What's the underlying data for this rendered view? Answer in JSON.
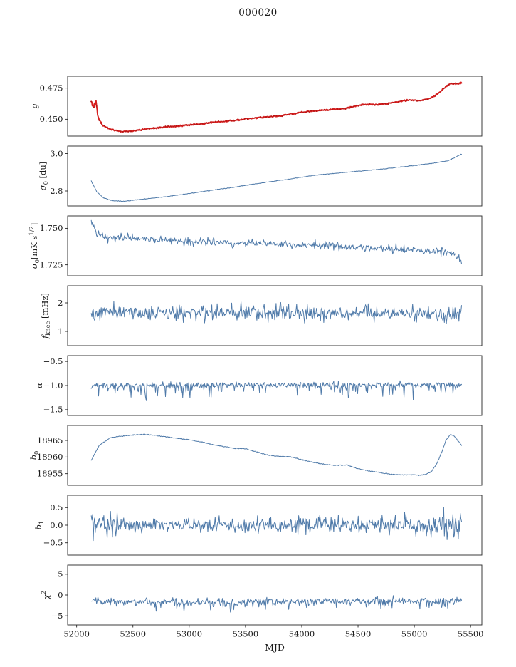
{
  "title": "000020",
  "chart_data": {
    "type": "line",
    "subtype": "multi-panel shared x-axis time series",
    "x": {
      "label": "MJD",
      "xlim": [
        51920,
        55600
      ],
      "ticks": [
        52000,
        52500,
        53000,
        53500,
        54000,
        54500,
        55000,
        55500
      ],
      "tick_labels": [
        "52000",
        "52500",
        "53000",
        "53500",
        "54000",
        "54500",
        "55000",
        "55500"
      ]
    },
    "panels": [
      {
        "id": "g",
        "ylabel_parts": [
          {
            "t": "g",
            "italic": true
          }
        ],
        "color": "#d62020",
        "ylim": [
          0.4365,
          0.4845
        ],
        "yticks": [
          {
            "v": 0.45,
            "label": "0.450"
          },
          {
            "v": 0.475,
            "label": "0.475"
          }
        ],
        "x_range": [
          52130,
          55420
        ],
        "n_points": 700,
        "noise_env": [
          [
            52130,
            0.0045
          ],
          [
            52210,
            0.0012
          ],
          [
            52280,
            0.0007
          ],
          [
            55420,
            0.0007
          ]
        ],
        "spiky": false,
        "trend_points_xy": [
          [
            52130,
            0.4645
          ],
          [
            52150,
            0.458
          ],
          [
            52170,
            0.4655
          ],
          [
            52190,
            0.452
          ],
          [
            52210,
            0.4475
          ],
          [
            52260,
            0.4435
          ],
          [
            52320,
            0.4415
          ],
          [
            52400,
            0.4402
          ],
          [
            52480,
            0.4405
          ],
          [
            52560,
            0.4415
          ],
          [
            52650,
            0.4425
          ],
          [
            52750,
            0.4435
          ],
          [
            52850,
            0.4442
          ],
          [
            52950,
            0.445
          ],
          [
            53050,
            0.4458
          ],
          [
            53150,
            0.4468
          ],
          [
            53250,
            0.4478
          ],
          [
            53350,
            0.4487
          ],
          [
            53450,
            0.4495
          ],
          [
            53550,
            0.4508
          ],
          [
            53650,
            0.4515
          ],
          [
            53750,
            0.4523
          ],
          [
            53850,
            0.4533
          ],
          [
            53950,
            0.4548
          ],
          [
            54050,
            0.4562
          ],
          [
            54150,
            0.457
          ],
          [
            54250,
            0.4577
          ],
          [
            54350,
            0.4583
          ],
          [
            54450,
            0.4598
          ],
          [
            54550,
            0.462
          ],
          [
            54650,
            0.4618
          ],
          [
            54750,
            0.4622
          ],
          [
            54850,
            0.464
          ],
          [
            54950,
            0.4655
          ],
          [
            55050,
            0.465
          ],
          [
            55120,
            0.4662
          ],
          [
            55180,
            0.4688
          ],
          [
            55240,
            0.473
          ],
          [
            55290,
            0.4768
          ],
          [
            55330,
            0.479
          ],
          [
            55370,
            0.4782
          ],
          [
            55420,
            0.4792
          ]
        ]
      },
      {
        "id": "sigma0_du",
        "ylabel_parts": [
          {
            "t": "σ",
            "italic": true
          },
          {
            "t": "0",
            "sub": true
          },
          {
            "t": " [du]"
          }
        ],
        "color": "#4f7aa9",
        "ylim": [
          2.72,
          3.04
        ],
        "yticks": [
          {
            "v": 2.8,
            "label": "2.8"
          },
          {
            "v": 3.0,
            "label": "3.0"
          }
        ],
        "x_range": [
          52130,
          55420
        ],
        "n_points": 700,
        "noise_amplitude": 0.0022,
        "spiky": false,
        "trend_points_xy": [
          [
            52130,
            2.853
          ],
          [
            52180,
            2.795
          ],
          [
            52240,
            2.763
          ],
          [
            52320,
            2.748
          ],
          [
            52420,
            2.745
          ],
          [
            52520,
            2.752
          ],
          [
            52650,
            2.76
          ],
          [
            52800,
            2.77
          ],
          [
            52950,
            2.782
          ],
          [
            53100,
            2.795
          ],
          [
            53250,
            2.808
          ],
          [
            53400,
            2.82
          ],
          [
            53550,
            2.835
          ],
          [
            53700,
            2.848
          ],
          [
            53850,
            2.86
          ],
          [
            54000,
            2.874
          ],
          [
            54150,
            2.886
          ],
          [
            54250,
            2.892
          ],
          [
            54400,
            2.9
          ],
          [
            54550,
            2.908
          ],
          [
            54700,
            2.916
          ],
          [
            54850,
            2.926
          ],
          [
            55000,
            2.936
          ],
          [
            55150,
            2.947
          ],
          [
            55300,
            2.962
          ],
          [
            55420,
            2.997
          ]
        ]
      },
      {
        "id": "sigma0_mK",
        "ylabel_parts": [
          {
            "t": "σ",
            "italic": true
          },
          {
            "t": "0",
            "sub": true
          },
          {
            "t": "[mK s"
          },
          {
            "t": "1/2",
            "sup": true
          },
          {
            "t": "]"
          }
        ],
        "color": "#4f7aa9",
        "ylim": [
          1.7175,
          1.7585
        ],
        "yticks": [
          {
            "v": 1.725,
            "label": "1.725"
          },
          {
            "v": 1.75,
            "label": "1.750"
          }
        ],
        "x_range": [
          52130,
          55420
        ],
        "n_points": 560,
        "noise_amplitude": 0.003,
        "spiky": true,
        "trend_points_xy": [
          [
            52130,
            1.756
          ],
          [
            52170,
            1.748
          ],
          [
            52220,
            1.7445
          ],
          [
            52300,
            1.7435
          ],
          [
            52450,
            1.744
          ],
          [
            52600,
            1.7425
          ],
          [
            52800,
            1.742
          ],
          [
            53000,
            1.7412
          ],
          [
            53200,
            1.7408
          ],
          [
            53400,
            1.74
          ],
          [
            53700,
            1.7392
          ],
          [
            54000,
            1.7388
          ],
          [
            54300,
            1.738
          ],
          [
            54600,
            1.7368
          ],
          [
            54900,
            1.7356
          ],
          [
            55100,
            1.735
          ],
          [
            55250,
            1.7342
          ],
          [
            55330,
            1.733
          ],
          [
            55390,
            1.73
          ],
          [
            55420,
            1.7268
          ]
        ]
      },
      {
        "id": "f_knee",
        "ylabel_parts": [
          {
            "t": "f",
            "italic": true
          },
          {
            "t": "knee",
            "sub": true
          },
          {
            "t": " [mHz]"
          }
        ],
        "color": "#4f7aa9",
        "ylim": [
          0.5,
          2.6
        ],
        "yticks": [
          {
            "v": 1,
            "label": "1"
          },
          {
            "v": 2,
            "label": "2"
          }
        ],
        "x_range": [
          52130,
          55420
        ],
        "n_points": 560,
        "noise_amplitude": 0.3,
        "spiky": true,
        "trend_points_xy": [
          [
            52130,
            1.7
          ],
          [
            53000,
            1.66
          ],
          [
            54000,
            1.65
          ],
          [
            55420,
            1.6
          ]
        ]
      },
      {
        "id": "alpha",
        "ylabel_parts": [
          {
            "t": "α",
            "italic": true
          }
        ],
        "color": "#4f7aa9",
        "ylim": [
          -1.62,
          -0.38
        ],
        "yticks": [
          {
            "v": -0.5,
            "label": "−0.5"
          },
          {
            "v": -1.0,
            "label": "−1.0"
          },
          {
            "v": -1.5,
            "label": "−1.5"
          }
        ],
        "x_range": [
          52130,
          55420
        ],
        "n_points": 560,
        "noise_amplitude": 0.065,
        "spiky": true,
        "skew": -0.28,
        "trend_points_xy": [
          [
            52130,
            -0.99
          ],
          [
            55420,
            -0.97
          ]
        ]
      },
      {
        "id": "b0",
        "ylabel_parts": [
          {
            "t": "b",
            "italic": true
          },
          {
            "t": "0",
            "sub": true
          }
        ],
        "color": "#4f7aa9",
        "ylim": [
          18951.5,
          18969.5
        ],
        "yticks": [
          {
            "v": 18955,
            "label": "18955"
          },
          {
            "v": 18960,
            "label": "18960"
          },
          {
            "v": 18965,
            "label": "18965"
          }
        ],
        "x_range": [
          52130,
          55420
        ],
        "n_points": 700,
        "noise_amplitude": 0.16,
        "spiky": false,
        "trend_points_xy": [
          [
            52130,
            18959.0
          ],
          [
            52200,
            18963.5
          ],
          [
            52300,
            18965.8
          ],
          [
            52400,
            18966.3
          ],
          [
            52500,
            18966.6
          ],
          [
            52600,
            18966.8
          ],
          [
            52700,
            18966.5
          ],
          [
            52800,
            18966.0
          ],
          [
            52900,
            18965.6
          ],
          [
            53000,
            18965.2
          ],
          [
            53100,
            18964.6
          ],
          [
            53200,
            18963.8
          ],
          [
            53300,
            18963.2
          ],
          [
            53400,
            18962.6
          ],
          [
            53500,
            18962.5
          ],
          [
            53600,
            18961.5
          ],
          [
            53700,
            18960.6
          ],
          [
            53800,
            18960.2
          ],
          [
            53900,
            18960.1
          ],
          [
            54000,
            18959.2
          ],
          [
            54100,
            18958.4
          ],
          [
            54200,
            18957.8
          ],
          [
            54300,
            18957.5
          ],
          [
            54400,
            18957.6
          ],
          [
            54500,
            18956.5
          ],
          [
            54600,
            18955.8
          ],
          [
            54700,
            18955.3
          ],
          [
            54800,
            18954.8
          ],
          [
            54900,
            18954.6
          ],
          [
            55000,
            18954.7
          ],
          [
            55050,
            18954.5
          ],
          [
            55100,
            18954.8
          ],
          [
            55150,
            18955.6
          ],
          [
            55200,
            18958.0
          ],
          [
            55250,
            18962.0
          ],
          [
            55280,
            18965.0
          ],
          [
            55320,
            18966.8
          ],
          [
            55350,
            18966.5
          ],
          [
            55420,
            18963.5
          ]
        ]
      },
      {
        "id": "b1",
        "ylabel_parts": [
          {
            "t": "b",
            "italic": true
          },
          {
            "t": "1",
            "sub": true
          }
        ],
        "color": "#4f7aa9",
        "ylim": [
          -0.85,
          0.85
        ],
        "yticks": [
          {
            "v": 0.5,
            "label": "0.5"
          },
          {
            "v": 0.0,
            "label": "0.0"
          },
          {
            "v": -0.5,
            "label": "−0.5"
          }
        ],
        "x_range": [
          52130,
          55420
        ],
        "n_points": 560,
        "noise_env": [
          [
            52130,
            0.55
          ],
          [
            52250,
            0.35
          ],
          [
            52500,
            0.26
          ],
          [
            53000,
            0.24
          ],
          [
            54800,
            0.26
          ],
          [
            55100,
            0.32
          ],
          [
            55200,
            0.5
          ],
          [
            55320,
            0.5
          ],
          [
            55420,
            0.38
          ]
        ],
        "spiky": true,
        "trend_points_xy": [
          [
            52130,
            0.05
          ],
          [
            52300,
            0.0
          ],
          [
            55420,
            0.0
          ]
        ]
      },
      {
        "id": "chi2",
        "ylabel_parts": [
          {
            "t": "χ",
            "italic": true
          },
          {
            "t": "2",
            "sup": true
          }
        ],
        "color": "#4f7aa9",
        "ylim": [
          -7.2,
          7.2
        ],
        "yticks": [
          {
            "v": 5,
            "label": "5"
          },
          {
            "v": 0,
            "label": "0"
          },
          {
            "v": -5,
            "label": "−5"
          }
        ],
        "x_range": [
          52130,
          55420
        ],
        "n_points": 560,
        "noise_amplitude": 1.0,
        "spiky": true,
        "skew": -2.2,
        "trend_points_xy": [
          [
            52130,
            -1.5
          ],
          [
            53000,
            -1.7
          ],
          [
            54000,
            -1.5
          ],
          [
            55420,
            -1.3
          ]
        ]
      }
    ]
  }
}
